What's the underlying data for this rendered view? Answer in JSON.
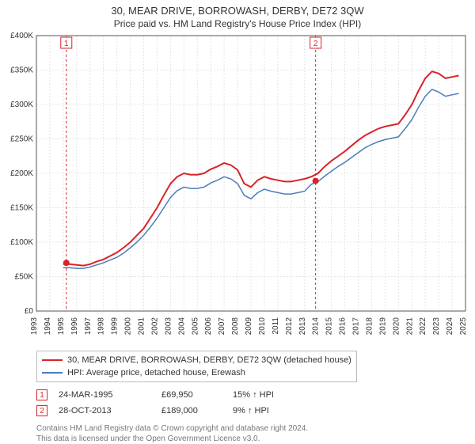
{
  "titles": {
    "line1": "30, MEAR DRIVE, BORROWASH, DERBY, DE72 3QW",
    "line2": "Price paid vs. HM Land Registry's House Price Index (HPI)"
  },
  "chart": {
    "type": "line",
    "background_color": "#ffffff",
    "grid_color": "#e4e4e4",
    "axis_color": "#555555",
    "tick_font_size": 10,
    "tick_color": "#333333",
    "x": {
      "min": 1993,
      "max": 2025,
      "ticks": [
        1993,
        1994,
        1995,
        1996,
        1997,
        1998,
        1999,
        2000,
        2001,
        2002,
        2003,
        2004,
        2005,
        2006,
        2007,
        2008,
        2009,
        2010,
        2011,
        2012,
        2013,
        2014,
        2015,
        2016,
        2017,
        2018,
        2019,
        2020,
        2021,
        2022,
        2023,
        2024,
        2025
      ]
    },
    "y": {
      "min": 0,
      "max": 400000,
      "ticks": [
        0,
        50000,
        100000,
        150000,
        200000,
        250000,
        300000,
        350000,
        400000
      ],
      "tick_labels": [
        "£0",
        "£50K",
        "£100K",
        "£150K",
        "£200K",
        "£250K",
        "£300K",
        "£350K",
        "£400K"
      ]
    },
    "series": [
      {
        "id": "property",
        "color": "#d8232a",
        "width": 2,
        "points": [
          [
            1995.0,
            68000
          ],
          [
            1995.5,
            68000
          ],
          [
            1996.0,
            67000
          ],
          [
            1996.5,
            66000
          ],
          [
            1997.0,
            68000
          ],
          [
            1997.5,
            72000
          ],
          [
            1998.0,
            75000
          ],
          [
            1998.5,
            80000
          ],
          [
            1999.0,
            85000
          ],
          [
            1999.5,
            92000
          ],
          [
            2000.0,
            100000
          ],
          [
            2000.5,
            110000
          ],
          [
            2001.0,
            120000
          ],
          [
            2001.5,
            135000
          ],
          [
            2002.0,
            150000
          ],
          [
            2002.5,
            168000
          ],
          [
            2003.0,
            185000
          ],
          [
            2003.5,
            195000
          ],
          [
            2004.0,
            200000
          ],
          [
            2004.5,
            198000
          ],
          [
            2005.0,
            198000
          ],
          [
            2005.5,
            200000
          ],
          [
            2006.0,
            206000
          ],
          [
            2006.5,
            210000
          ],
          [
            2007.0,
            215000
          ],
          [
            2007.5,
            212000
          ],
          [
            2008.0,
            205000
          ],
          [
            2008.5,
            185000
          ],
          [
            2009.0,
            180000
          ],
          [
            2009.5,
            190000
          ],
          [
            2010.0,
            195000
          ],
          [
            2010.5,
            192000
          ],
          [
            2011.0,
            190000
          ],
          [
            2011.5,
            188000
          ],
          [
            2012.0,
            188000
          ],
          [
            2012.5,
            190000
          ],
          [
            2013.0,
            192000
          ],
          [
            2013.5,
            195000
          ],
          [
            2014.0,
            200000
          ],
          [
            2014.5,
            210000
          ],
          [
            2015.0,
            218000
          ],
          [
            2015.5,
            225000
          ],
          [
            2016.0,
            232000
          ],
          [
            2016.5,
            240000
          ],
          [
            2017.0,
            248000
          ],
          [
            2017.5,
            255000
          ],
          [
            2018.0,
            260000
          ],
          [
            2018.5,
            265000
          ],
          [
            2019.0,
            268000
          ],
          [
            2019.5,
            270000
          ],
          [
            2020.0,
            272000
          ],
          [
            2020.5,
            285000
          ],
          [
            2021.0,
            300000
          ],
          [
            2021.5,
            320000
          ],
          [
            2022.0,
            338000
          ],
          [
            2022.5,
            348000
          ],
          [
            2023.0,
            345000
          ],
          [
            2023.5,
            338000
          ],
          [
            2024.0,
            340000
          ],
          [
            2024.5,
            342000
          ]
        ]
      },
      {
        "id": "hpi",
        "color": "#4a7ebb",
        "width": 1.5,
        "points": [
          [
            1995.0,
            63000
          ],
          [
            1995.5,
            63000
          ],
          [
            1996.0,
            62000
          ],
          [
            1996.5,
            62000
          ],
          [
            1997.0,
            64000
          ],
          [
            1997.5,
            67000
          ],
          [
            1998.0,
            70000
          ],
          [
            1998.5,
            74000
          ],
          [
            1999.0,
            78000
          ],
          [
            1999.5,
            84000
          ],
          [
            2000.0,
            92000
          ],
          [
            2000.5,
            100000
          ],
          [
            2001.0,
            110000
          ],
          [
            2001.5,
            122000
          ],
          [
            2002.0,
            135000
          ],
          [
            2002.5,
            150000
          ],
          [
            2003.0,
            165000
          ],
          [
            2003.5,
            175000
          ],
          [
            2004.0,
            180000
          ],
          [
            2004.5,
            178000
          ],
          [
            2005.0,
            178000
          ],
          [
            2005.5,
            180000
          ],
          [
            2006.0,
            186000
          ],
          [
            2006.5,
            190000
          ],
          [
            2007.0,
            195000
          ],
          [
            2007.5,
            192000
          ],
          [
            2008.0,
            185000
          ],
          [
            2008.5,
            168000
          ],
          [
            2009.0,
            163000
          ],
          [
            2009.5,
            172000
          ],
          [
            2010.0,
            177000
          ],
          [
            2010.5,
            174000
          ],
          [
            2011.0,
            172000
          ],
          [
            2011.5,
            170000
          ],
          [
            2012.0,
            170000
          ],
          [
            2012.5,
            172000
          ],
          [
            2013.0,
            174000
          ],
          [
            2013.5,
            184000
          ],
          [
            2014.0,
            188000
          ],
          [
            2014.5,
            196000
          ],
          [
            2015.0,
            203000
          ],
          [
            2015.5,
            210000
          ],
          [
            2016.0,
            216000
          ],
          [
            2016.5,
            223000
          ],
          [
            2017.0,
            230000
          ],
          [
            2017.5,
            237000
          ],
          [
            2018.0,
            242000
          ],
          [
            2018.5,
            246000
          ],
          [
            2019.0,
            249000
          ],
          [
            2019.5,
            251000
          ],
          [
            2020.0,
            253000
          ],
          [
            2020.5,
            265000
          ],
          [
            2021.0,
            278000
          ],
          [
            2021.5,
            296000
          ],
          [
            2022.0,
            312000
          ],
          [
            2022.5,
            322000
          ],
          [
            2023.0,
            318000
          ],
          [
            2023.5,
            312000
          ],
          [
            2024.0,
            314000
          ],
          [
            2024.5,
            316000
          ]
        ]
      }
    ],
    "sale_markers": [
      {
        "n": 1,
        "x": 1995.23,
        "y": 69950,
        "color": "#d8232a"
      },
      {
        "n": 2,
        "x": 2013.82,
        "y": 189000,
        "color": "#d8232a"
      }
    ]
  },
  "legend": {
    "series1": "30, MEAR DRIVE, BORROWASH, DERBY, DE72 3QW (detached house)",
    "series1_color": "#d8232a",
    "series2": "HPI: Average price, detached house, Erewash",
    "series2_color": "#4a7ebb"
  },
  "sales": [
    {
      "n": "1",
      "date": "24-MAR-1995",
      "price": "£69,950",
      "delta": "15% ↑ HPI",
      "badge_color": "#d8232a"
    },
    {
      "n": "2",
      "date": "28-OCT-2013",
      "price": "£189,000",
      "delta": "9% ↑ HPI",
      "badge_color": "#d8232a"
    }
  ],
  "footer": {
    "line1": "Contains HM Land Registry data © Crown copyright and database right 2024.",
    "line2": "This data is licensed under the Open Government Licence v3.0."
  }
}
